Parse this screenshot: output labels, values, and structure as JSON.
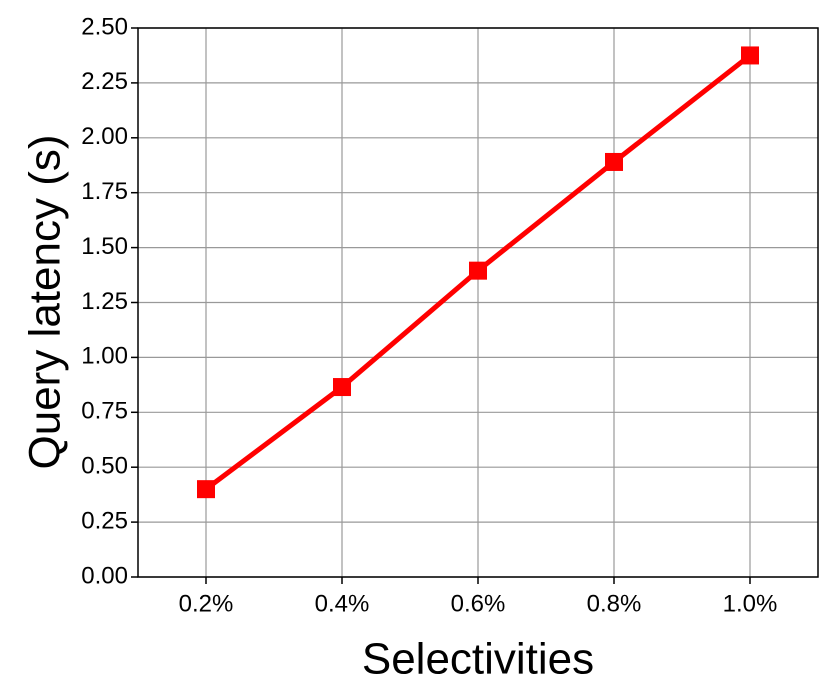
{
  "chart_data": {
    "type": "line",
    "x_label": "Selectivities",
    "y_label": "Query latency (s)",
    "categories": [
      "0.2%",
      "0.4%",
      "0.6%",
      "0.8%",
      "1.0%"
    ],
    "series": [
      {
        "name": "Query latency",
        "color": "#ff0000",
        "values": [
          0.4,
          0.865,
          1.395,
          1.89,
          2.375
        ]
      }
    ],
    "ylim": [
      0,
      2.5
    ],
    "yticks": [
      {
        "value": 0,
        "label": "0.00"
      },
      0.25,
      {
        "value": 0.5,
        "label": "0.50"
      },
      0.75,
      {
        "value": 1,
        "label": "1.00"
      },
      1.25,
      {
        "value": 1.5,
        "label": "1.50"
      },
      1.75,
      {
        "value": 2,
        "label": "2.00"
      },
      2.25,
      {
        "value": 2.5,
        "label": "2.50"
      }
    ],
    "grid": true
  }
}
